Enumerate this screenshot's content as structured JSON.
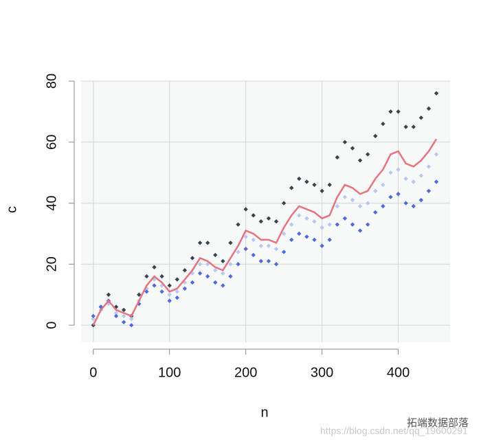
{
  "chart_data": {
    "type": "scatter",
    "x_label": "n",
    "y_label": "c",
    "xlim": [
      -16,
      468
    ],
    "ylim": [
      -5.6,
      80
    ],
    "xticks": [
      0,
      100,
      200,
      300,
      400
    ],
    "yticks": [
      0,
      20,
      40,
      60,
      80
    ],
    "grid": true,
    "x": [
      0,
      10,
      20,
      30,
      40,
      50,
      60,
      70,
      80,
      90,
      100,
      110,
      120,
      130,
      140,
      150,
      160,
      170,
      180,
      190,
      200,
      210,
      220,
      230,
      240,
      250,
      260,
      270,
      280,
      290,
      300,
      310,
      320,
      330,
      340,
      350,
      360,
      370,
      380,
      390,
      400,
      410,
      420,
      430,
      440,
      450
    ],
    "series": [
      {
        "mode": "points",
        "color": "#36454f",
        "values": [
          0,
          6,
          10,
          6,
          5,
          3,
          10,
          16,
          19,
          16,
          13,
          15,
          18,
          22,
          27,
          27,
          23,
          21,
          27,
          33,
          38,
          36,
          34,
          35,
          34,
          40,
          45,
          48,
          47,
          46,
          44,
          46,
          55,
          60,
          58,
          54,
          56,
          62,
          66,
          70,
          70,
          65,
          65,
          68,
          71,
          76
        ]
      },
      {
        "mode": "points",
        "color": "#b9c8f0",
        "values": [
          2,
          5,
          7,
          4,
          3,
          2,
          8,
          12,
          15,
          13,
          10,
          11,
          14,
          17,
          20,
          20,
          18,
          17,
          20,
          24,
          29,
          28,
          26,
          26,
          25,
          30,
          33,
          36,
          35,
          34,
          32,
          33,
          39,
          42,
          41,
          39,
          40,
          44,
          46,
          50,
          51,
          48,
          47,
          49,
          52,
          56
        ]
      },
      {
        "mode": "points",
        "color": "#4f6bdb",
        "values": [
          3,
          6,
          8,
          3,
          1,
          0,
          7,
          11,
          13,
          11,
          8,
          9,
          12,
          14,
          17,
          16,
          14,
          13,
          16,
          20,
          25,
          23,
          21,
          21,
          20,
          24,
          28,
          30,
          29,
          28,
          26,
          28,
          33,
          35,
          33,
          31,
          33,
          37,
          39,
          42,
          43,
          40,
          39,
          41,
          44,
          47
        ]
      },
      {
        "mode": "line",
        "color": "#e57380",
        "values": [
          0,
          5,
          8,
          5,
          4,
          3,
          8,
          13,
          16,
          14,
          11,
          12,
          15,
          18,
          22,
          21,
          19,
          18,
          22,
          26,
          31,
          30,
          28,
          28,
          27,
          32,
          36,
          39,
          38,
          37,
          35,
          36,
          42,
          46,
          45,
          43,
          44,
          48,
          51,
          56,
          57,
          53,
          52,
          54,
          57,
          61
        ]
      }
    ]
  },
  "watermark": {
    "brand": "拓端数据部落",
    "url": "https://blog.csdn.net/qq_19600291"
  }
}
